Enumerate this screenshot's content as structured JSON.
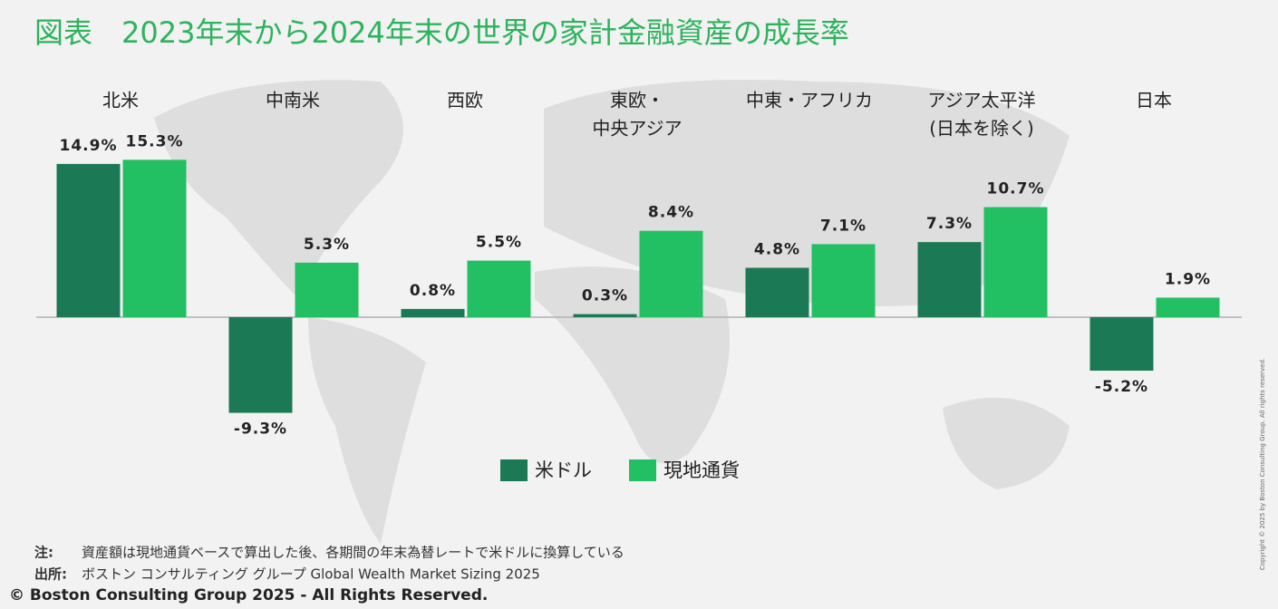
{
  "chart_data": {
    "type": "bar",
    "title": "図表　2023年末から2024年末の世界の家計金融資産の成長率",
    "categories": [
      [
        "北米"
      ],
      [
        "中南米"
      ],
      [
        "西欧"
      ],
      [
        "東欧・",
        "中央アジア"
      ],
      [
        "中東・アフリカ"
      ],
      [
        "アジア太平洋",
        "(日本を除く)"
      ],
      [
        "日本"
      ]
    ],
    "series": [
      {
        "name": "米ドル",
        "color": "#1b7a55",
        "values": [
          14.9,
          -9.3,
          0.8,
          0.3,
          4.8,
          7.3,
          -5.2
        ],
        "value_labels": [
          "14.9%",
          "-9.3%",
          "0.8%",
          "0.3%",
          "4.8%",
          "7.3%",
          "-5.2%"
        ]
      },
      {
        "name": "現地通貨",
        "color": "#22bf63",
        "values": [
          15.3,
          5.3,
          5.5,
          8.4,
          7.1,
          10.7,
          1.9
        ],
        "value_labels": [
          "15.3%",
          "5.3%",
          "5.5%",
          "8.4%",
          "7.1%",
          "10.7%",
          "1.9%"
        ]
      }
    ]
  },
  "footer": {
    "note_label": "注:",
    "note": "資産額は現地通貨ベースで算出した後、各期間の年末為替レートで米ドルに換算している",
    "source_label": "出所:",
    "source": "ボストン コンサルティング グループ Global Wealth Market Sizing 2025",
    "copyright": "© Boston Consulting Group 2025 - All Rights Reserved.",
    "side_copyright": "Copyright © 2025 by Boston Consulting Group. All rights reserved."
  }
}
